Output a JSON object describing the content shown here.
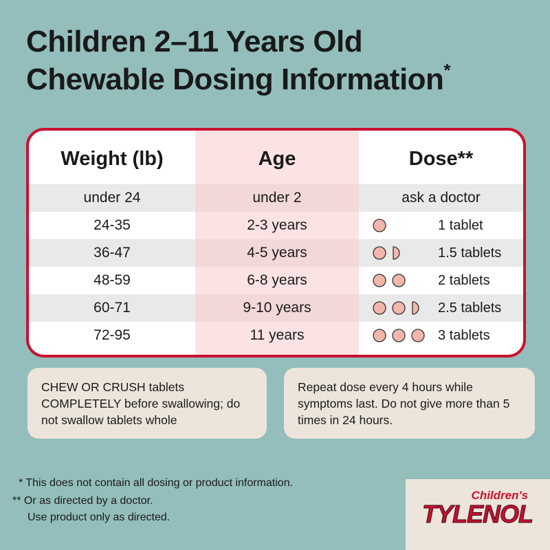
{
  "title": {
    "line1": "Children 2–11 Years Old",
    "line2": "Chewable Dosing Information",
    "mark": "*"
  },
  "table": {
    "header": [
      "Weight (lb)",
      "Age",
      "Dose**"
    ],
    "rows": [
      [
        "under 24",
        "under 2",
        "ask a doctor"
      ],
      [
        "24-35",
        "2-3 years",
        "1 tablet"
      ],
      [
        "36-47",
        "4-5 years",
        "1.5 tablets"
      ],
      [
        "48-59",
        "6-8 years",
        "2 tablets"
      ],
      [
        "60-71",
        "9-10 years",
        "2.5 tablets"
      ],
      [
        "72-95",
        "11 years",
        "3 tablets"
      ]
    ]
  },
  "notes": [
    "CHEW OR CRUSH tablets COMPLETELY before swallowing; do not swallow tablets whole",
    "Repeat dose every 4 hours while symptoms last. Do not give more than 5 times in 24 hours."
  ],
  "footnotes": [
    "* This does not contain all dosing or product information.",
    "** Or as directed by a doctor.",
    "Use product only as directed."
  ],
  "logo": {
    "brand": "Children's",
    "name": "TYLENOL"
  }
}
